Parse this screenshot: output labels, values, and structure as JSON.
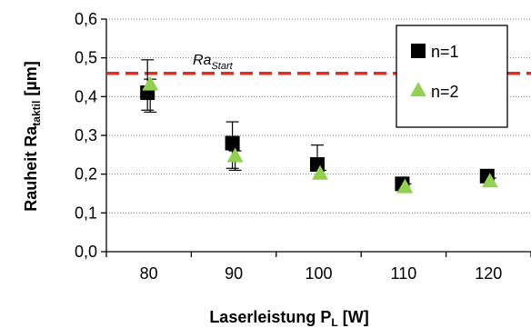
{
  "chart_data": {
    "type": "scatter",
    "x_categories": [
      "80",
      "90",
      "100",
      "110",
      "120"
    ],
    "y_ticks": [
      "0,0",
      "0,1",
      "0,2",
      "0,3",
      "0,4",
      "0,5",
      "0,6"
    ],
    "ylim": [
      0,
      0.6
    ],
    "xlabel": "Laserleistung P",
    "xlabel_sub": "L",
    "xlabel_unit": " [W]",
    "ylabel": "Rauheit Ra",
    "ylabel_sub": "taktil",
    "ylabel_unit": " [µm]",
    "grid": "horizontal dotted",
    "legend_position": "top-right",
    "reference_line": {
      "label": "Ra",
      "label_sub": "Start",
      "value": 0.46,
      "color": "#e8291c",
      "style": "dashed"
    },
    "series": [
      {
        "name": "n=1",
        "marker": "square",
        "color": "#000000",
        "values": [
          0.41,
          0.28,
          0.225,
          0.175,
          0.195
        ],
        "error_upper": [
          0.495,
          0.335,
          0.275,
          0.185,
          0.21
        ],
        "error_lower": [
          0.365,
          0.215,
          0.21,
          0.165,
          0.185
        ]
      },
      {
        "name": "n=2",
        "marker": "triangle",
        "color": "#92d050",
        "values": [
          0.43,
          0.245,
          0.2,
          0.165,
          0.18
        ],
        "error_upper": [
          0.445,
          0.26,
          0.21,
          0.175,
          0.19
        ],
        "error_lower": [
          0.36,
          0.21,
          0.19,
          0.155,
          0.17
        ]
      }
    ]
  }
}
